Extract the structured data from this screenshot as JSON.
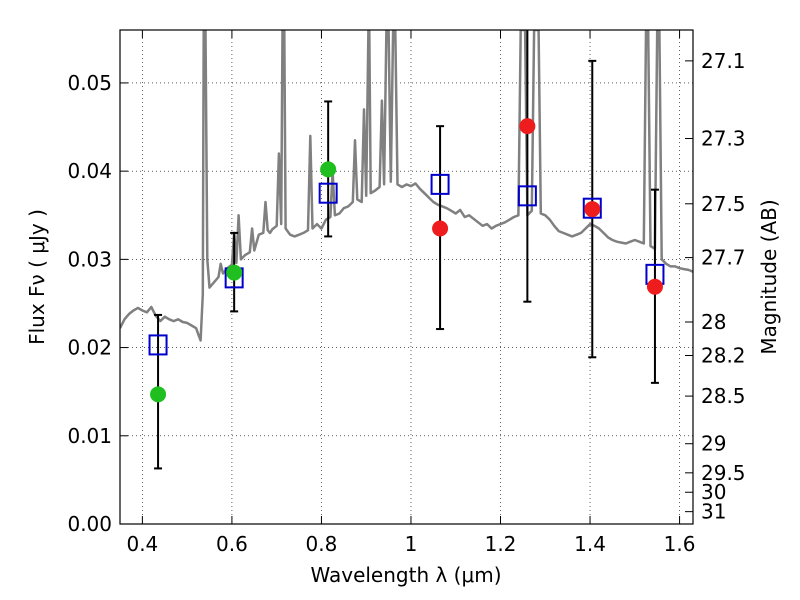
{
  "chart_data": {
    "type": "scatter",
    "xlabel": "Wavelength  λ (μm)",
    "ylabel": "Flux  Fν ( μJy )",
    "y2label": "Magnitude (AB)",
    "xlim": [
      0.35,
      1.63
    ],
    "ylim": [
      0.0,
      0.056
    ],
    "grid": true,
    "x_ticks": [
      0.4,
      0.6,
      0.8,
      1.0,
      1.2,
      1.4,
      1.6
    ],
    "x_tick_labels": [
      "0.4",
      "0.6",
      "0.8",
      "1",
      "1.2",
      "1.4",
      "1.6"
    ],
    "y_ticks": [
      0.0,
      0.01,
      0.02,
      0.03,
      0.04,
      0.05
    ],
    "y_tick_labels": [
      "0.00",
      "0.01",
      "0.02",
      "0.03",
      "0.04",
      "0.05"
    ],
    "y2_ticks": [
      {
        "label": "27.1",
        "flux": 0.0525
      },
      {
        "label": "27.3",
        "flux": 0.0437
      },
      {
        "label": "27.5",
        "flux": 0.0363
      },
      {
        "label": "27.7",
        "flux": 0.0302
      },
      {
        "label": "28",
        "flux": 0.0229
      },
      {
        "label": "28.2",
        "flux": 0.0191
      },
      {
        "label": "28.5",
        "flux": 0.0145
      },
      {
        "label": "29",
        "flux": 0.0091
      },
      {
        "label": "29.5",
        "flux": 0.0058
      },
      {
        "label": "30",
        "flux": 0.0036
      },
      {
        "label": "31",
        "flux": 0.0014
      }
    ],
    "series": [
      {
        "name": "model spectrum",
        "kind": "line",
        "color": "#808080",
        "points": [
          [
            0.35,
            0.0222
          ],
          [
            0.36,
            0.0232
          ],
          [
            0.37,
            0.0238
          ],
          [
            0.38,
            0.0242
          ],
          [
            0.39,
            0.0245
          ],
          [
            0.4,
            0.0242
          ],
          [
            0.41,
            0.024
          ],
          [
            0.42,
            0.0246
          ],
          [
            0.43,
            0.0236
          ],
          [
            0.44,
            0.023
          ],
          [
            0.45,
            0.0235
          ],
          [
            0.46,
            0.0232
          ],
          [
            0.47,
            0.023
          ],
          [
            0.48,
            0.0232
          ],
          [
            0.49,
            0.0229
          ],
          [
            0.5,
            0.0228
          ],
          [
            0.51,
            0.0225
          ],
          [
            0.52,
            0.0222
          ],
          [
            0.525,
            0.0215
          ],
          [
            0.53,
            0.0208
          ],
          [
            0.535,
            0.026
          ],
          [
            0.537,
            0.056
          ],
          [
            0.541,
            0.056
          ],
          [
            0.545,
            0.03
          ],
          [
            0.55,
            0.0268
          ],
          [
            0.56,
            0.0274
          ],
          [
            0.57,
            0.028
          ],
          [
            0.575,
            0.0295
          ],
          [
            0.58,
            0.0284
          ],
          [
            0.59,
            0.029
          ],
          [
            0.6,
            0.0294
          ],
          [
            0.605,
            0.033
          ],
          [
            0.61,
            0.0296
          ],
          [
            0.615,
            0.035
          ],
          [
            0.62,
            0.03
          ],
          [
            0.63,
            0.0305
          ],
          [
            0.64,
            0.0308
          ],
          [
            0.645,
            0.0335
          ],
          [
            0.65,
            0.031
          ],
          [
            0.66,
            0.0328
          ],
          [
            0.67,
            0.033
          ],
          [
            0.675,
            0.0365
          ],
          [
            0.68,
            0.0333
          ],
          [
            0.685,
            0.033
          ],
          [
            0.69,
            0.0334
          ],
          [
            0.7,
            0.0338
          ],
          [
            0.705,
            0.042
          ],
          [
            0.71,
            0.034
          ],
          [
            0.713,
            0.056
          ],
          [
            0.717,
            0.056
          ],
          [
            0.72,
            0.0335
          ],
          [
            0.73,
            0.0328
          ],
          [
            0.74,
            0.0326
          ],
          [
            0.75,
            0.0328
          ],
          [
            0.76,
            0.033
          ],
          [
            0.77,
            0.0333
          ],
          [
            0.775,
            0.044
          ],
          [
            0.78,
            0.0335
          ],
          [
            0.79,
            0.034
          ],
          [
            0.8,
            0.0335
          ],
          [
            0.81,
            0.0345
          ],
          [
            0.82,
            0.0348
          ],
          [
            0.825,
            0.04
          ],
          [
            0.83,
            0.035
          ],
          [
            0.84,
            0.0352
          ],
          [
            0.85,
            0.0358
          ],
          [
            0.86,
            0.036
          ],
          [
            0.87,
            0.0365
          ],
          [
            0.875,
            0.0435
          ],
          [
            0.88,
            0.0368
          ],
          [
            0.89,
            0.0365
          ],
          [
            0.895,
            0.047
          ],
          [
            0.9,
            0.0372
          ],
          [
            0.905,
            0.056
          ],
          [
            0.907,
            0.056
          ],
          [
            0.91,
            0.0375
          ],
          [
            0.92,
            0.0378
          ],
          [
            0.93,
            0.0382
          ],
          [
            0.935,
            0.048
          ],
          [
            0.94,
            0.0385
          ],
          [
            0.945,
            0.056
          ],
          [
            0.95,
            0.056
          ],
          [
            0.955,
            0.0388
          ],
          [
            0.96,
            0.056
          ],
          [
            0.965,
            0.056
          ],
          [
            0.97,
            0.0385
          ],
          [
            0.98,
            0.0382
          ],
          [
            0.99,
            0.0385
          ],
          [
            1.0,
            0.0383
          ],
          [
            1.01,
            0.0386
          ],
          [
            1.02,
            0.038
          ],
          [
            1.03,
            0.0375
          ],
          [
            1.04,
            0.037
          ],
          [
            1.05,
            0.0365
          ],
          [
            1.06,
            0.0362
          ],
          [
            1.07,
            0.036
          ],
          [
            1.08,
            0.0358
          ],
          [
            1.09,
            0.0355
          ],
          [
            1.1,
            0.0352
          ],
          [
            1.11,
            0.0356
          ],
          [
            1.12,
            0.0348
          ],
          [
            1.13,
            0.035
          ],
          [
            1.14,
            0.0346
          ],
          [
            1.15,
            0.0342
          ],
          [
            1.16,
            0.0338
          ],
          [
            1.17,
            0.034
          ],
          [
            1.18,
            0.0335
          ],
          [
            1.19,
            0.0338
          ],
          [
            1.2,
            0.034
          ],
          [
            1.21,
            0.0342
          ],
          [
            1.22,
            0.0345
          ],
          [
            1.23,
            0.0348
          ],
          [
            1.24,
            0.035
          ],
          [
            1.245,
            0.056
          ],
          [
            1.255,
            0.056
          ],
          [
            1.26,
            0.035
          ],
          [
            1.27,
            0.0355
          ],
          [
            1.275,
            0.056
          ],
          [
            1.285,
            0.056
          ],
          [
            1.29,
            0.0352
          ],
          [
            1.3,
            0.035
          ],
          [
            1.31,
            0.0345
          ],
          [
            1.32,
            0.0338
          ],
          [
            1.33,
            0.0332
          ],
          [
            1.34,
            0.033
          ],
          [
            1.35,
            0.0328
          ],
          [
            1.36,
            0.0326
          ],
          [
            1.37,
            0.0328
          ],
          [
            1.38,
            0.033
          ],
          [
            1.39,
            0.0335
          ],
          [
            1.4,
            0.034
          ],
          [
            1.41,
            0.0338
          ],
          [
            1.42,
            0.0335
          ],
          [
            1.43,
            0.033
          ],
          [
            1.44,
            0.0325
          ],
          [
            1.45,
            0.0322
          ],
          [
            1.46,
            0.032
          ],
          [
            1.47,
            0.0319
          ],
          [
            1.48,
            0.0318
          ],
          [
            1.49,
            0.032
          ],
          [
            1.5,
            0.0322
          ],
          [
            1.51,
            0.032
          ],
          [
            1.52,
            0.0318
          ],
          [
            1.525,
            0.056
          ],
          [
            1.53,
            0.056
          ],
          [
            1.535,
            0.0315
          ],
          [
            1.545,
            0.0312
          ],
          [
            1.55,
            0.056
          ],
          [
            1.555,
            0.056
          ],
          [
            1.56,
            0.03
          ],
          [
            1.57,
            0.0295
          ],
          [
            1.58,
            0.0292
          ],
          [
            1.59,
            0.0292
          ],
          [
            1.6,
            0.029
          ],
          [
            1.61,
            0.0289
          ],
          [
            1.62,
            0.0288
          ],
          [
            1.63,
            0.0286
          ]
        ]
      },
      {
        "name": "observed (green)",
        "kind": "points",
        "color": "#1fbf1f",
        "points": [
          {
            "x": 0.435,
            "y": 0.0147,
            "err_lo": 0.0063,
            "err_hi": 0.0237
          },
          {
            "x": 0.605,
            "y": 0.0285,
            "err_lo": 0.0241,
            "err_hi": 0.033
          },
          {
            "x": 0.815,
            "y": 0.0402,
            "err_lo": 0.0326,
            "err_hi": 0.0479
          }
        ]
      },
      {
        "name": "observed (red)",
        "kind": "points",
        "color": "#ee1c1c",
        "points": [
          {
            "x": 1.065,
            "y": 0.0335,
            "err_lo": 0.0221,
            "err_hi": 0.0451
          },
          {
            "x": 1.26,
            "y": 0.0451,
            "err_lo": 0.0252,
            "err_hi": 0.056
          },
          {
            "x": 1.405,
            "y": 0.0357,
            "err_lo": 0.0189,
            "err_hi": 0.0525
          },
          {
            "x": 1.545,
            "y": 0.0269,
            "err_lo": 0.016,
            "err_hi": 0.0379
          }
        ]
      },
      {
        "name": "model photometry",
        "kind": "squares",
        "color": "#0000cc",
        "points": [
          {
            "x": 0.435,
            "y": 0.0203
          },
          {
            "x": 0.605,
            "y": 0.0279
          },
          {
            "x": 0.815,
            "y": 0.0375
          },
          {
            "x": 1.065,
            "y": 0.0385
          },
          {
            "x": 1.26,
            "y": 0.0372
          },
          {
            "x": 1.405,
            "y": 0.0358
          },
          {
            "x": 1.545,
            "y": 0.0283
          }
        ]
      }
    ]
  }
}
